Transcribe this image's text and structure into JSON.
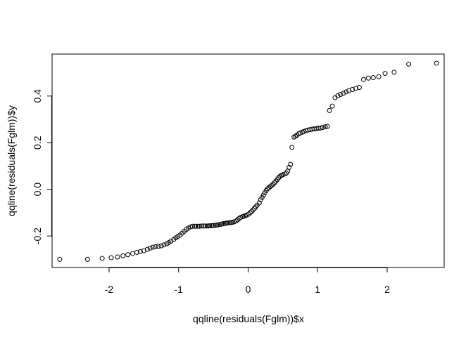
{
  "chart_data": {
    "type": "scatter",
    "title": "",
    "xlabel": "qqline(residuals(Fglm))$x",
    "ylabel": "qqline(residuals(Fglm))$y",
    "xlim": [
      -2.82,
      2.82
    ],
    "ylim": [
      -0.335,
      0.58
    ],
    "xticks": [
      -2,
      -1,
      0,
      1,
      2
    ],
    "xtick_labels": [
      "-2",
      "-1",
      "0",
      "1",
      "2"
    ],
    "yticks": [
      -0.2,
      0.0,
      0.2,
      0.4
    ],
    "ytick_labels": [
      "-0.2",
      "0.0",
      "0.2",
      "0.4"
    ],
    "grid": false,
    "marker": "open-circle",
    "marker_color": "#000000",
    "points": [
      [
        -2.71,
        -0.3
      ],
      [
        -2.31,
        -0.3
      ],
      [
        -2.1,
        -0.296
      ],
      [
        -1.97,
        -0.293
      ],
      [
        -1.88,
        -0.29
      ],
      [
        -1.8,
        -0.285
      ],
      [
        -1.73,
        -0.28
      ],
      [
        -1.66,
        -0.275
      ],
      [
        -1.6,
        -0.27
      ],
      [
        -1.55,
        -0.267
      ],
      [
        -1.5,
        -0.263
      ],
      [
        -1.45,
        -0.257
      ],
      [
        -1.41,
        -0.252
      ],
      [
        -1.37,
        -0.248
      ],
      [
        -1.33,
        -0.246
      ],
      [
        -1.29,
        -0.244
      ],
      [
        -1.25,
        -0.242
      ],
      [
        -1.21,
        -0.238
      ],
      [
        -1.17,
        -0.233
      ],
      [
        -1.14,
        -0.228
      ],
      [
        -1.11,
        -0.222
      ],
      [
        -1.07,
        -0.215
      ],
      [
        -1.04,
        -0.208
      ],
      [
        -1.01,
        -0.202
      ],
      [
        -0.98,
        -0.196
      ],
      [
        -0.95,
        -0.188
      ],
      [
        -0.92,
        -0.18
      ],
      [
        -0.89,
        -0.172
      ],
      [
        -0.86,
        -0.166
      ],
      [
        -0.83,
        -0.161
      ],
      [
        -0.8,
        -0.158
      ],
      [
        -0.77,
        -0.158
      ],
      [
        -0.75,
        -0.158
      ],
      [
        -0.72,
        -0.158
      ],
      [
        -0.7,
        -0.158
      ],
      [
        -0.67,
        -0.157
      ],
      [
        -0.64,
        -0.157
      ],
      [
        -0.62,
        -0.157
      ],
      [
        -0.59,
        -0.157
      ],
      [
        -0.57,
        -0.157
      ],
      [
        -0.55,
        -0.156
      ],
      [
        -0.52,
        -0.156
      ],
      [
        -0.5,
        -0.155
      ],
      [
        -0.47,
        -0.154
      ],
      [
        -0.45,
        -0.153
      ],
      [
        -0.43,
        -0.152
      ],
      [
        -0.4,
        -0.15
      ],
      [
        -0.38,
        -0.149
      ],
      [
        -0.36,
        -0.147
      ],
      [
        -0.33,
        -0.146
      ],
      [
        -0.31,
        -0.145
      ],
      [
        -0.29,
        -0.144
      ],
      [
        -0.26,
        -0.143
      ],
      [
        -0.24,
        -0.142
      ],
      [
        -0.22,
        -0.141
      ],
      [
        -0.2,
        -0.139
      ],
      [
        -0.17,
        -0.135
      ],
      [
        -0.15,
        -0.13
      ],
      [
        -0.13,
        -0.125
      ],
      [
        -0.11,
        -0.12
      ],
      [
        -0.08,
        -0.117
      ],
      [
        -0.06,
        -0.115
      ],
      [
        -0.04,
        -0.113
      ],
      [
        -0.02,
        -0.11
      ],
      [
        0.01,
        -0.106
      ],
      [
        0.03,
        -0.1
      ],
      [
        0.05,
        -0.095
      ],
      [
        0.07,
        -0.088
      ],
      [
        0.09,
        -0.082
      ],
      [
        0.11,
        -0.075
      ],
      [
        0.13,
        -0.068
      ],
      [
        0.16,
        -0.058
      ],
      [
        0.18,
        -0.045
      ],
      [
        0.2,
        -0.035
      ],
      [
        0.22,
        -0.025
      ],
      [
        0.24,
        -0.015
      ],
      [
        0.26,
        -0.005
      ],
      [
        0.28,
        0.003
      ],
      [
        0.3,
        0.008
      ],
      [
        0.32,
        0.012
      ],
      [
        0.34,
        0.017
      ],
      [
        0.36,
        0.022
      ],
      [
        0.38,
        0.028
      ],
      [
        0.4,
        0.035
      ],
      [
        0.42,
        0.042
      ],
      [
        0.44,
        0.05
      ],
      [
        0.46,
        0.056
      ],
      [
        0.48,
        0.06
      ],
      [
        0.5,
        0.063
      ],
      [
        0.53,
        0.066
      ],
      [
        0.55,
        0.07
      ],
      [
        0.57,
        0.078
      ],
      [
        0.59,
        0.094
      ],
      [
        0.61,
        0.107
      ],
      [
        0.63,
        0.18
      ],
      [
        0.66,
        0.224
      ],
      [
        0.68,
        0.228
      ],
      [
        0.7,
        0.232
      ],
      [
        0.73,
        0.238
      ],
      [
        0.75,
        0.242
      ],
      [
        0.78,
        0.245
      ],
      [
        0.8,
        0.248
      ],
      [
        0.83,
        0.251
      ],
      [
        0.86,
        0.254
      ],
      [
        0.89,
        0.256
      ],
      [
        0.92,
        0.258
      ],
      [
        0.95,
        0.259
      ],
      [
        0.98,
        0.261
      ],
      [
        1.01,
        0.262
      ],
      [
        1.04,
        0.263
      ],
      [
        1.07,
        0.265
      ],
      [
        1.11,
        0.268
      ],
      [
        1.14,
        0.27
      ],
      [
        1.17,
        0.338
      ],
      [
        1.21,
        0.357
      ],
      [
        1.25,
        0.393
      ],
      [
        1.29,
        0.401
      ],
      [
        1.33,
        0.407
      ],
      [
        1.37,
        0.412
      ],
      [
        1.41,
        0.418
      ],
      [
        1.45,
        0.423
      ],
      [
        1.5,
        0.428
      ],
      [
        1.55,
        0.433
      ],
      [
        1.6,
        0.437
      ],
      [
        1.66,
        0.471
      ],
      [
        1.73,
        0.477
      ],
      [
        1.8,
        0.479
      ],
      [
        1.88,
        0.483
      ],
      [
        1.97,
        0.497
      ],
      [
        2.1,
        0.502
      ],
      [
        2.31,
        0.537
      ],
      [
        2.71,
        0.541
      ]
    ]
  }
}
